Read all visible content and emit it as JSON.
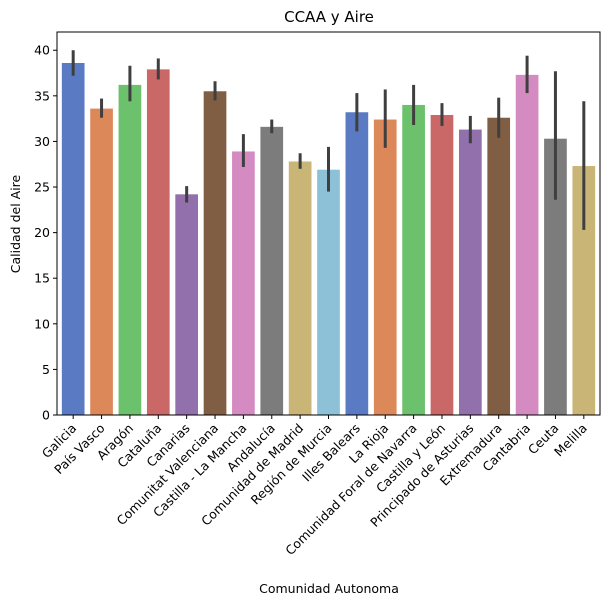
{
  "chart_data": {
    "type": "bar",
    "title": "CCAA y Aire",
    "xlabel": "Comunidad Autonoma",
    "ylabel": "Calidad del Aire",
    "ylim": [
      0,
      42
    ],
    "yticks": [
      0,
      5,
      10,
      15,
      20,
      25,
      30,
      35,
      40
    ],
    "grid": false,
    "categories": [
      "Galicia",
      "País Vasco",
      "Aragón",
      "Cataluña",
      "Canarias",
      "Comunitat Valenciana",
      "Castilla - La Mancha",
      "Andalucía",
      "Comunidad de Madrid",
      "Región de Murcia",
      "Illes Balears",
      "La Rioja",
      "Comunidad Foral de Navarra",
      "Castilla y León",
      "Principado de Asturias",
      "Extremadura",
      "Cantabria",
      "Ceuta",
      "Melilla"
    ],
    "values": [
      38.6,
      33.6,
      36.2,
      37.9,
      24.2,
      35.5,
      28.9,
      31.6,
      27.8,
      26.9,
      33.2,
      32.4,
      34.0,
      32.9,
      31.3,
      32.6,
      37.3,
      30.3,
      27.3
    ],
    "error_low": [
      37.2,
      32.6,
      34.4,
      36.8,
      23.3,
      34.5,
      27.2,
      30.9,
      27.0,
      24.5,
      31.1,
      29.3,
      31.8,
      31.7,
      29.8,
      30.4,
      35.3,
      23.6,
      20.3
    ],
    "error_high": [
      40.0,
      34.7,
      38.3,
      39.1,
      25.1,
      36.6,
      30.8,
      32.4,
      28.7,
      29.4,
      35.3,
      35.7,
      36.2,
      34.2,
      32.8,
      34.8,
      39.4,
      37.7,
      34.4
    ],
    "colors": [
      "#5a7bc3",
      "#dd8859",
      "#6cc16d",
      "#c96867",
      "#9270ac",
      "#805e44",
      "#d48bc2",
      "#7c7c7c",
      "#c9b576",
      "#8cc1d8",
      "#5a7bc3",
      "#dd8859",
      "#6cc16d",
      "#c96867",
      "#9270ac",
      "#805e44",
      "#d48bc2",
      "#7c7c7c",
      "#c9b576"
    ],
    "errorbar_color": "#3f3f3f"
  }
}
